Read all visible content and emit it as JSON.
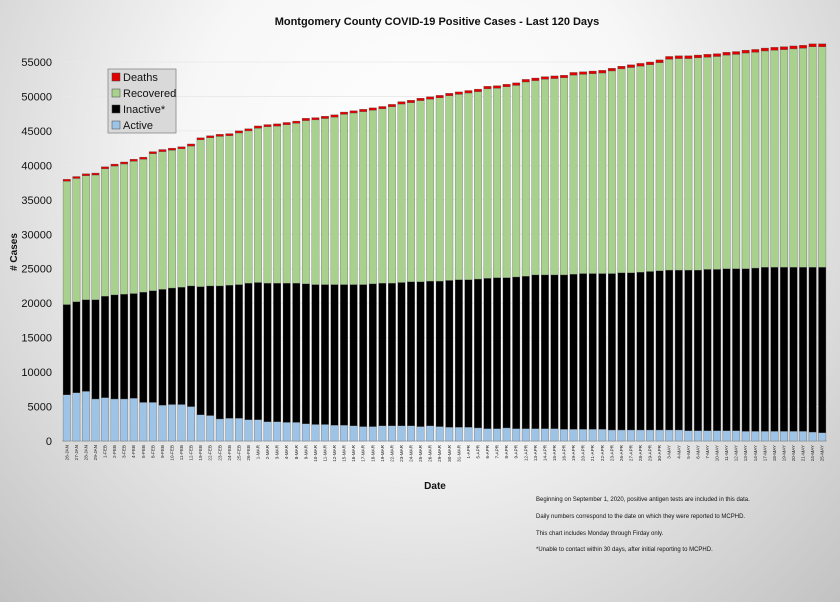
{
  "chart_data": {
    "type": "bar",
    "stacked": true,
    "title": "Montgomery County COVID-19 Positive Cases - Last  120 Days",
    "xlabel": "Date",
    "ylabel": "# Cases",
    "ylim": [
      0,
      55000
    ],
    "yticks": [
      0,
      5000,
      10000,
      15000,
      20000,
      25000,
      30000,
      35000,
      40000,
      45000,
      50000,
      55000
    ],
    "ytick_labels": [
      "0",
      "5000",
      "10000",
      "15000",
      "20000",
      "25000",
      "30000",
      "35000",
      "40000",
      "45000",
      "50000",
      "55000"
    ],
    "grid": true,
    "legend_position": "top-left",
    "categories": [
      "26-JAN",
      "27-JAN",
      "28-JAN",
      "29-JAN",
      "1-FEB",
      "2-FEB",
      "3-FEB",
      "4-FEB",
      "5-FEB",
      "8-FEB",
      "9-FEB",
      "10-FEB",
      "11-FEB",
      "12-FEB",
      "19-FEB",
      "22-FEB",
      "23-FEB",
      "24-FEB",
      "25-FEB",
      "26-FEB",
      "1-MAR",
      "2-MAR",
      "3-MAR",
      "4-MAR",
      "8-MAR",
      "9-MAR",
      "10-MAR",
      "11-MAR",
      "12-MAR",
      "15-MAR",
      "16-MAR",
      "17-MAR",
      "18-MAR",
      "19-MAR",
      "22-MAR",
      "23-MAR",
      "24-MAR",
      "25-MAR",
      "26-MAR",
      "29-MAR",
      "30-MAR",
      "31-MAR",
      "1-APR",
      "5-APR",
      "6-APR",
      "7-APR",
      "8-APR",
      "9-APR",
      "12-APR",
      "13-APR",
      "14-APR",
      "15-APR",
      "16-APR",
      "19-APR",
      "20-APR",
      "21-APR",
      "22-APR",
      "23-APR",
      "26-APR",
      "27-APR",
      "28-APR",
      "29-APR",
      "30-APR",
      "3-MAY",
      "4-MAY",
      "5-MAY",
      "6-MAY",
      "7-MAY",
      "10-MAY",
      "11-MAY",
      "12-MAY",
      "13-MAY",
      "14-MAY",
      "17-MAY",
      "18-MAY",
      "19-MAY",
      "20-MAY",
      "21-MAY",
      "24-MAY",
      "25-MAY"
    ],
    "series": [
      {
        "name": "Active",
        "color": "#9dc3e6",
        "values": [
          6700,
          7000,
          7200,
          6100,
          6300,
          6100,
          6100,
          6200,
          5600,
          5600,
          5200,
          5300,
          5300,
          5000,
          3800,
          3700,
          3200,
          3300,
          3300,
          3100,
          3100,
          2800,
          2800,
          2700,
          2700,
          2500,
          2400,
          2400,
          2300,
          2300,
          2200,
          2100,
          2100,
          2200,
          2200,
          2200,
          2200,
          2100,
          2200,
          2100,
          2000,
          2000,
          2000,
          1900,
          1800,
          1800,
          1900,
          1800,
          1800,
          1800,
          1800,
          1800,
          1700,
          1700,
          1700,
          1700,
          1700,
          1600,
          1600,
          1600,
          1600,
          1600,
          1600,
          1600,
          1600,
          1500,
          1500,
          1500,
          1500,
          1500,
          1500,
          1400,
          1400,
          1400,
          1400,
          1400,
          1400,
          1400,
          1300,
          1200
        ]
      },
      {
        "name": "Inactive*",
        "color": "#000000",
        "values": [
          13100,
          13200,
          13300,
          14400,
          14700,
          15100,
          15200,
          15200,
          16000,
          16200,
          16800,
          16900,
          17000,
          17500,
          18600,
          18800,
          19300,
          19300,
          19400,
          19800,
          19900,
          20100,
          20100,
          20200,
          20200,
          20300,
          20300,
          20300,
          20400,
          20400,
          20500,
          20600,
          20700,
          20700,
          20700,
          20800,
          20900,
          21000,
          21000,
          21100,
          21300,
          21400,
          21400,
          21600,
          21800,
          21900,
          21800,
          22000,
          22100,
          22300,
          22300,
          22300,
          22400,
          22500,
          22600,
          22600,
          22600,
          22700,
          22800,
          22800,
          22900,
          23000,
          23100,
          23200,
          23200,
          23300,
          23300,
          23400,
          23400,
          23500,
          23500,
          23600,
          23700,
          23800,
          23800,
          23800,
          23800,
          23800,
          23900,
          24000
        ]
      },
      {
        "name": "Recovered",
        "color": "#a9d18e",
        "values": [
          17900,
          17900,
          18000,
          18100,
          18500,
          18700,
          18900,
          19200,
          19300,
          19900,
          20000,
          20000,
          20100,
          20300,
          21300,
          21500,
          21700,
          21700,
          22000,
          22100,
          22400,
          22700,
          22800,
          23000,
          23200,
          23700,
          23900,
          24100,
          24300,
          24700,
          24900,
          25100,
          25200,
          25300,
          25600,
          25900,
          26000,
          26300,
          26400,
          26600,
          26800,
          26900,
          27100,
          27200,
          27500,
          27500,
          27700,
          27800,
          28200,
          28200,
          28400,
          28500,
          28600,
          28900,
          28900,
          29000,
          29100,
          29400,
          29600,
          29800,
          29900,
          30000,
          30200,
          30600,
          30700,
          30700,
          30800,
          30800,
          30900,
          31000,
          31100,
          31300,
          31300,
          31400,
          31500,
          31600,
          31700,
          31800,
          32000,
          32000
        ]
      },
      {
        "name": "Deaths",
        "color": "#e00000",
        "values": [
          280,
          282,
          284,
          286,
          288,
          290,
          292,
          294,
          296,
          298,
          300,
          302,
          304,
          306,
          308,
          310,
          312,
          314,
          316,
          318,
          320,
          322,
          324,
          326,
          328,
          330,
          332,
          334,
          336,
          338,
          340,
          342,
          344,
          346,
          348,
          350,
          352,
          354,
          356,
          358,
          360,
          362,
          364,
          366,
          368,
          370,
          372,
          374,
          376,
          378,
          380,
          382,
          384,
          386,
          388,
          390,
          392,
          394,
          396,
          398,
          400,
          402,
          404,
          406,
          408,
          410,
          412,
          414,
          416,
          418,
          420,
          422,
          424,
          426,
          428,
          430,
          432,
          434,
          436,
          438
        ]
      }
    ],
    "legend": [
      "Deaths",
      "Recovered",
      "Inactive*",
      "Active"
    ]
  },
  "notes": [
    "Beginning on September 1, 2020, positive antigen tests are included in this data.",
    "Daily numbers correspond to the date on which they were reported to MCPHD.",
    "This chart includes Monday through Firday only.",
    "*Unable to contact within 30 days, after initial reporting to MCPHD."
  ]
}
